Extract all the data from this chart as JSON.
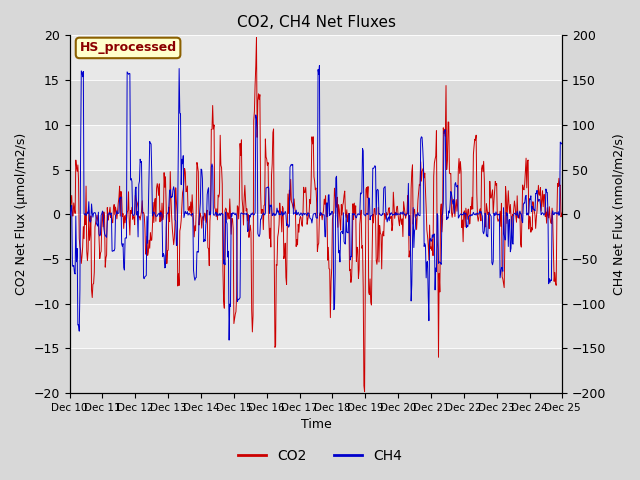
{
  "title": "CO2, CH4 Net Fluxes",
  "xlabel": "Time",
  "ylabel_left": "CO2 Net Flux (μmol/m2/s)",
  "ylabel_right": "CH4 Net Flux (nmol/m2/s)",
  "annotation_text": "HS_processed",
  "annotation_color": "#8B0000",
  "annotation_bg": "#FFFFCC",
  "annotation_border": "#8B6000",
  "ylim_left": [
    -20,
    20
  ],
  "ylim_right": [
    -200,
    200
  ],
  "yticks_left": [
    -20,
    -15,
    -10,
    -5,
    0,
    5,
    10,
    15,
    20
  ],
  "yticks_right": [
    -200,
    -150,
    -100,
    -50,
    0,
    50,
    100,
    150,
    200
  ],
  "co2_color": "#CC0000",
  "ch4_color": "#0000CC",
  "fig_bg_color": "#D8D8D8",
  "plot_bg_light": "#E8E8E8",
  "plot_bg_dark": "#DCDCDC",
  "legend_co2": "CO2",
  "legend_ch4": "CH4",
  "linewidth": 0.7,
  "xtick_labels": [
    "Dec 10",
    "Dec 11",
    "Dec 12",
    "Dec 13",
    "Dec 14",
    "Dec 15",
    "Dec 16",
    "Dec 17",
    "Dec 18",
    "Dec 19",
    "Dec 20",
    "Dec 21",
    "Dec 22",
    "Dec 23",
    "Dec 24",
    "Dec 25"
  ],
  "seed": 42,
  "n_days": 15,
  "n_per_day": 48
}
